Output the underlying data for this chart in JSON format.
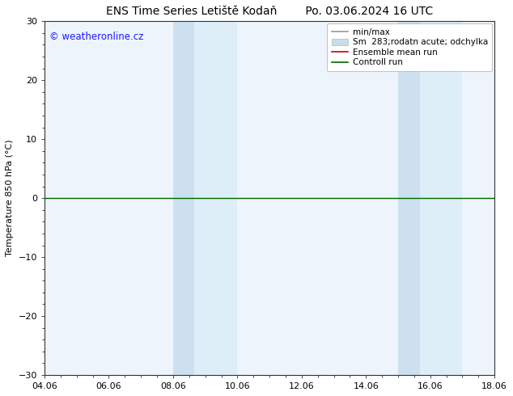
{
  "title_left": "ENS Time Series Letiště Kodaň",
  "title_right": "Po. 03.06.2024 16 UTC",
  "ylabel": "Temperature 850 hPa (°C)",
  "watermark": "© weatheronline.cz",
  "watermark_color": "#1a1aff",
  "ylim": [
    -30,
    30
  ],
  "yticks": [
    -30,
    -20,
    -10,
    0,
    10,
    20,
    30
  ],
  "xtick_labels": [
    "04.06",
    "06.06",
    "08.06",
    "10.06",
    "12.06",
    "14.06",
    "16.06",
    "18.06"
  ],
  "xtick_positions": [
    0,
    2,
    4,
    6,
    8,
    10,
    12,
    14
  ],
  "x_total": 14,
  "background_color": "#ffffff",
  "plot_bg_color": "#eef4fb",
  "shaded_bands": [
    {
      "x_start": 4.0,
      "x_end": 4.667,
      "color": "#cce0f0"
    },
    {
      "x_start": 4.667,
      "x_end": 6.0,
      "color": "#ddeef8"
    },
    {
      "x_start": 11.0,
      "x_end": 11.667,
      "color": "#cce0f0"
    },
    {
      "x_start": 11.667,
      "x_end": 13.0,
      "color": "#ddeef8"
    }
  ],
  "control_run_color": "#006600",
  "ensemble_mean_color": "#cc0000",
  "minmax_color": "#999999",
  "spread_color": "#c8dcea",
  "title_fontsize": 10,
  "axis_label_fontsize": 8,
  "tick_fontsize": 8,
  "legend_fontsize": 7.5,
  "watermark_fontsize": 8.5
}
